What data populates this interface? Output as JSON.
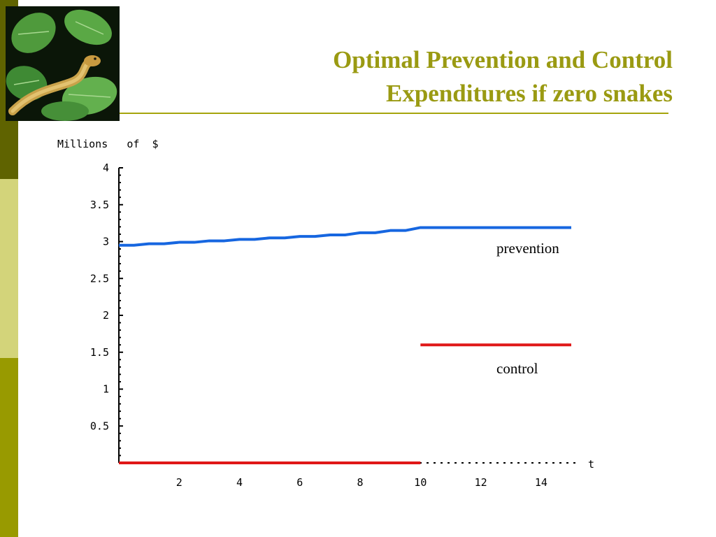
{
  "slide": {
    "title_line1": "Optimal Prevention and Control",
    "title_line2": "Expenditures if zero snakes",
    "colors": {
      "title": "#9a9a12",
      "rule": "#a5a40c",
      "sidebar": [
        "#5f6300",
        "#d3d47a",
        "#989a00"
      ]
    },
    "photo": {
      "icon": "snake-on-leaves-photo"
    }
  },
  "chart_data": {
    "type": "line",
    "ylabel": "Millions   of  $",
    "xlabel": "t",
    "xlim": [
      0,
      15
    ],
    "ylim": [
      0,
      4
    ],
    "x_ticks": [
      "2",
      "4",
      "6",
      "8",
      "10",
      "12",
      "14"
    ],
    "y_ticks": [
      "0.5",
      "1",
      "1.5",
      "2",
      "2.5",
      "3",
      "3.5",
      "4"
    ],
    "series": [
      {
        "name": "prevention",
        "color": "#1666e0",
        "x": [
          0,
          0.5,
          1,
          1.5,
          2,
          2.5,
          3,
          3.5,
          4,
          4.5,
          5,
          5.5,
          6,
          6.5,
          7,
          7.5,
          8,
          8.5,
          9,
          9.5,
          10,
          15
        ],
        "y": [
          2.95,
          2.95,
          2.97,
          2.97,
          2.99,
          2.99,
          3.01,
          3.01,
          3.03,
          3.03,
          3.05,
          3.05,
          3.07,
          3.07,
          3.09,
          3.09,
          3.12,
          3.12,
          3.15,
          3.15,
          3.19,
          3.19
        ]
      },
      {
        "name": "control",
        "color": "#e01818",
        "segments": [
          {
            "x": [
              0,
              10
            ],
            "y": [
              0,
              0
            ]
          },
          {
            "x": [
              10,
              15
            ],
            "y": [
              1.6,
              1.6
            ]
          }
        ]
      }
    ],
    "annotations": [
      {
        "text": "prevention"
      },
      {
        "text": "control"
      }
    ],
    "grid": false
  }
}
